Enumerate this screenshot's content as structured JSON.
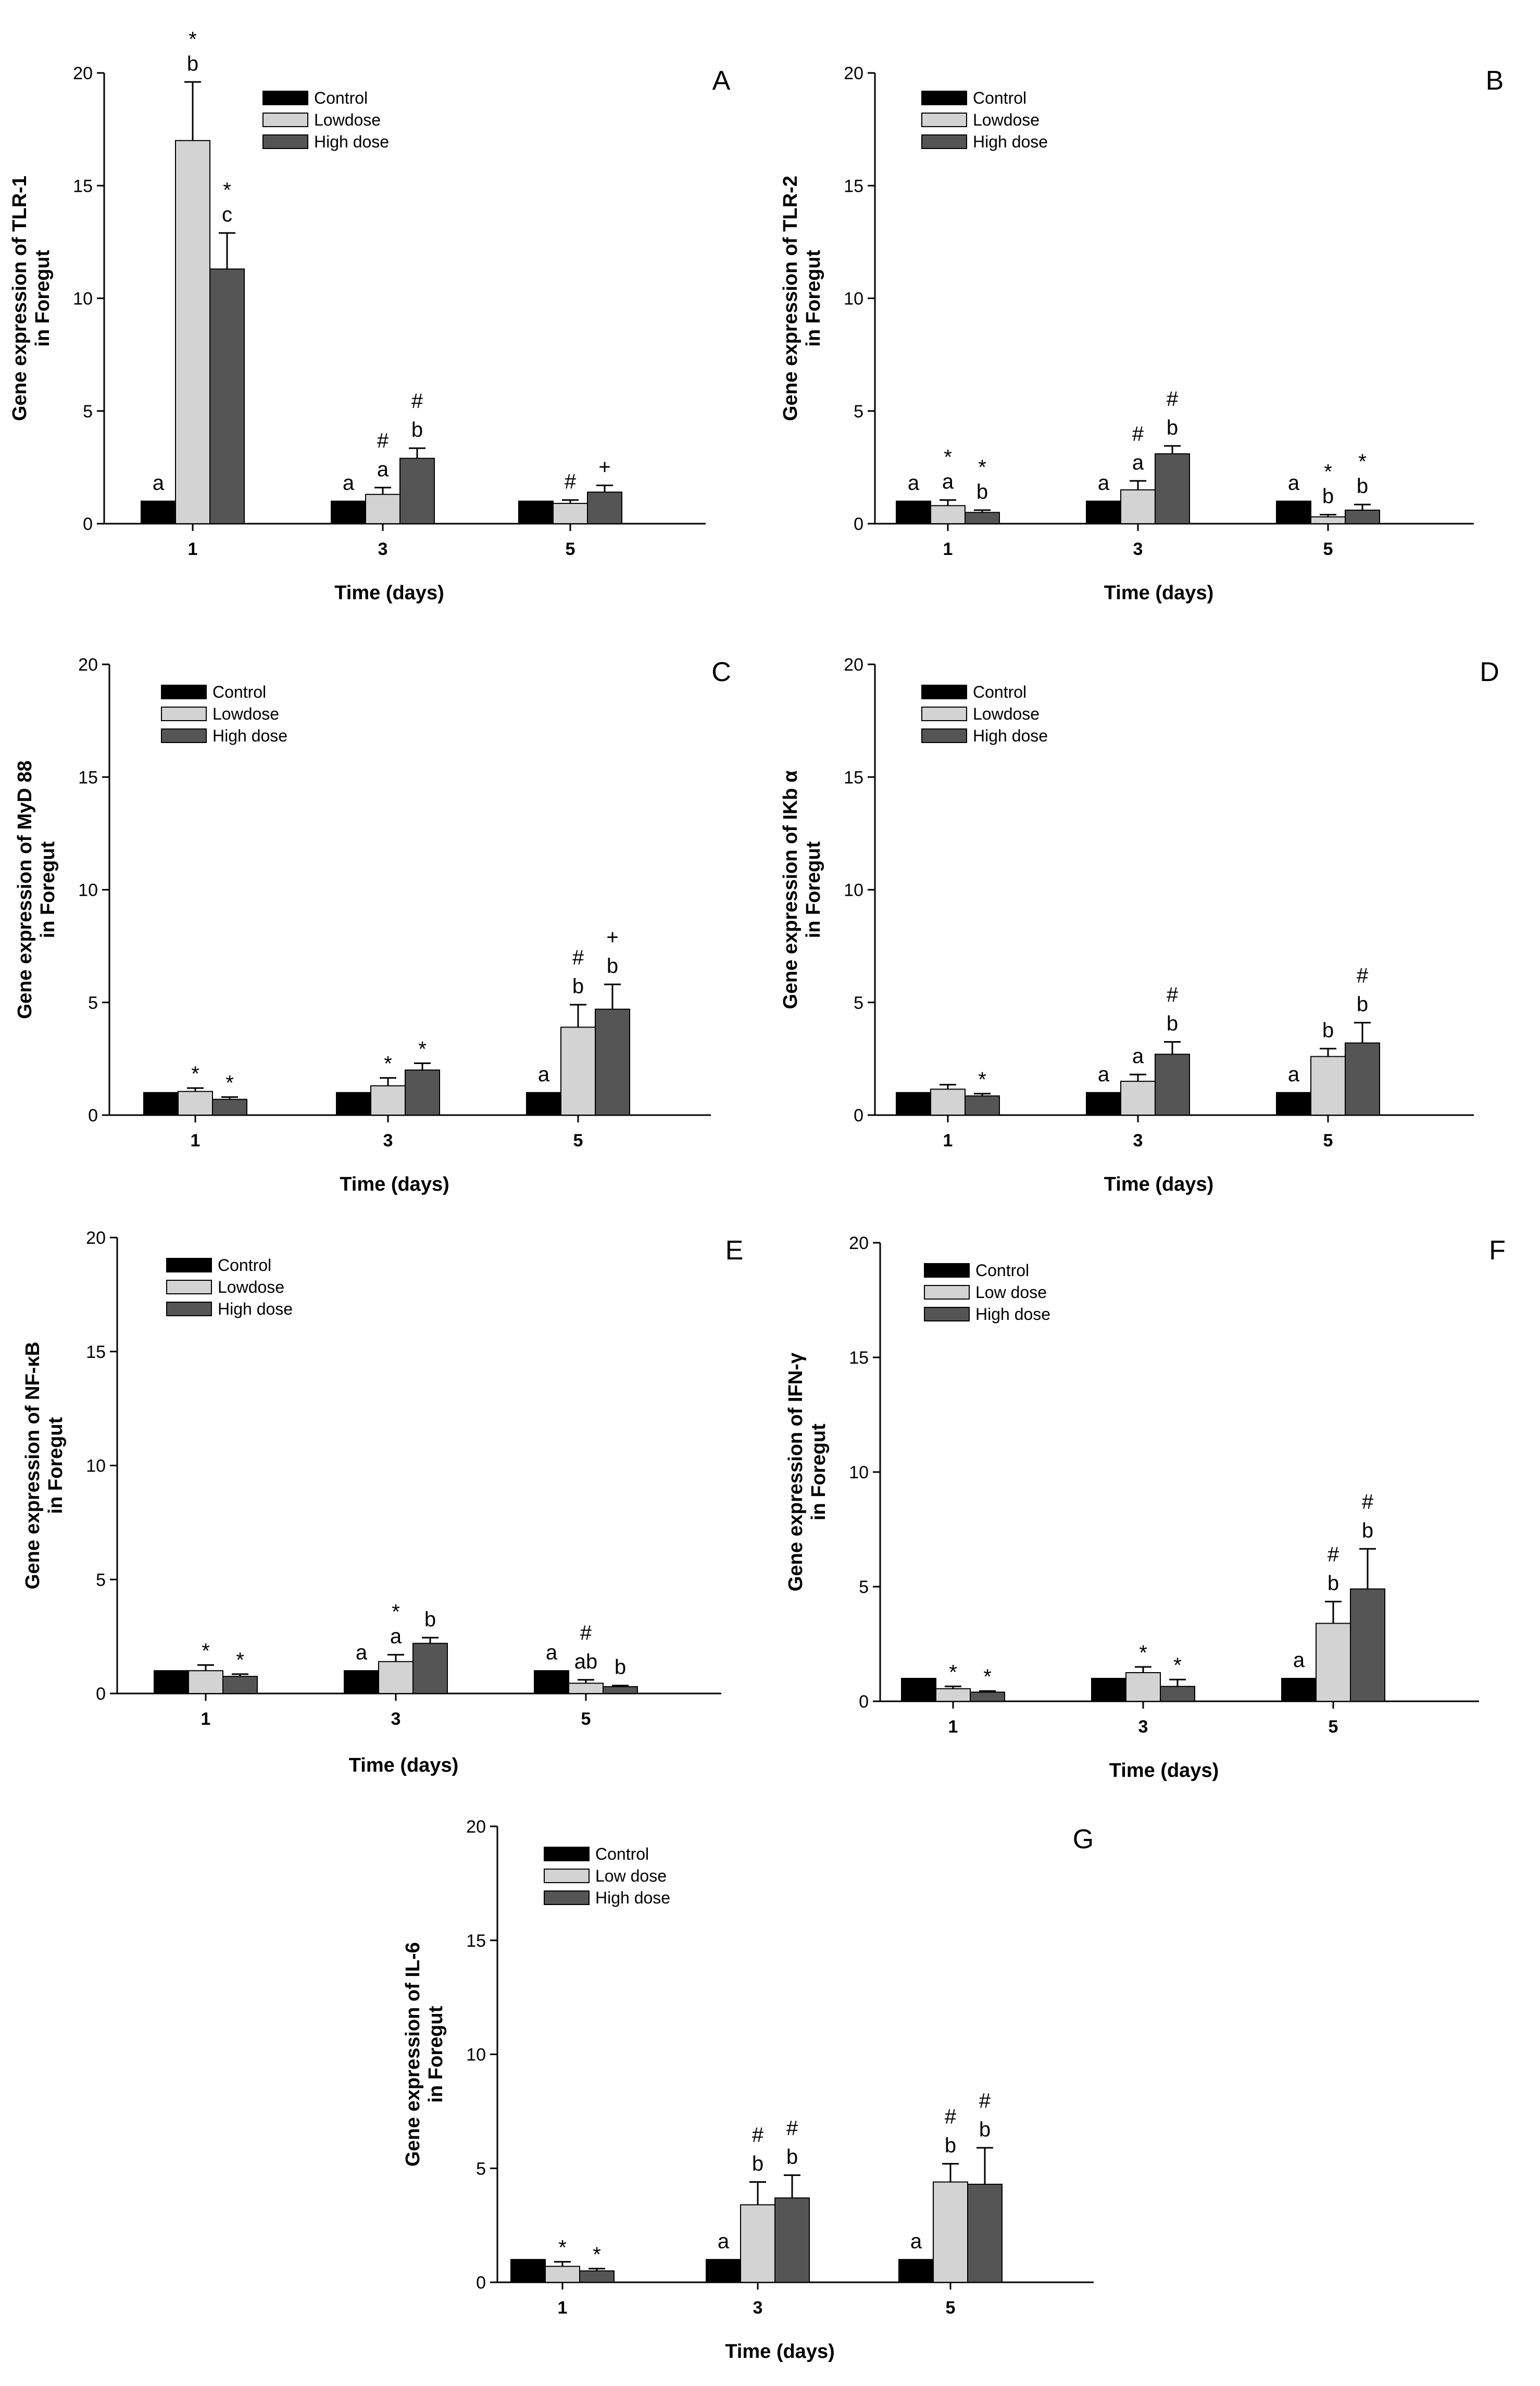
{
  "figure": {
    "legend_labels_default": [
      "Control",
      "Lowdose",
      "High dose"
    ],
    "colors": {
      "control": "#000000",
      "low": "#d3d3d3",
      "high": "#555555"
    }
  },
  "chart_data": [
    {
      "id": "A",
      "type": "bar",
      "panel": "A",
      "ylabel_lines": [
        "Gene expression of TLR-1",
        "in Foregut"
      ],
      "xlabel": "Time (days)",
      "categories": [
        "1",
        "3",
        "5"
      ],
      "ylim": [
        0,
        20
      ],
      "yticks": [
        0,
        5,
        10,
        15,
        20
      ],
      "legend": [
        "Control",
        "Lowdose",
        "High dose"
      ],
      "series": [
        {
          "name": "Control",
          "values": [
            1,
            1,
            1
          ],
          "errors": [
            0,
            0,
            0
          ]
        },
        {
          "name": "Lowdose",
          "values": [
            17,
            1.3,
            0.9
          ],
          "errors": [
            2.6,
            0.3,
            0.15
          ]
        },
        {
          "name": "High dose",
          "values": [
            11.3,
            2.9,
            1.4
          ],
          "errors": [
            1.6,
            0.45,
            0.3
          ]
        }
      ],
      "annotations": [
        {
          "group": 0,
          "series": 0,
          "labels": [
            "a"
          ]
        },
        {
          "group": 0,
          "series": 1,
          "labels": [
            "*",
            "b"
          ]
        },
        {
          "group": 0,
          "series": 2,
          "labels": [
            "*",
            "c"
          ]
        },
        {
          "group": 1,
          "series": 0,
          "labels": [
            "a"
          ]
        },
        {
          "group": 1,
          "series": 1,
          "labels": [
            "#",
            "a"
          ]
        },
        {
          "group": 1,
          "series": 2,
          "labels": [
            "#",
            "b"
          ]
        },
        {
          "group": 2,
          "series": 1,
          "labels": [
            "#"
          ]
        },
        {
          "group": 2,
          "series": 2,
          "labels": [
            "+"
          ]
        }
      ]
    },
    {
      "id": "B",
      "type": "bar",
      "panel": "B",
      "ylabel_lines": [
        "Gene expression of TLR-2",
        "in Foregut"
      ],
      "xlabel": "Time (days)",
      "categories": [
        "1",
        "3",
        "5"
      ],
      "ylim": [
        0,
        20
      ],
      "yticks": [
        0,
        5,
        10,
        15,
        20
      ],
      "legend": [
        "Control",
        "Lowdose",
        "High dose"
      ],
      "series": [
        {
          "name": "Control",
          "values": [
            1,
            1,
            1
          ],
          "errors": [
            0,
            0,
            0
          ]
        },
        {
          "name": "Lowdose",
          "values": [
            0.8,
            1.5,
            0.3
          ],
          "errors": [
            0.25,
            0.4,
            0.1
          ]
        },
        {
          "name": "High dose",
          "values": [
            0.5,
            3.1,
            0.6
          ],
          "errors": [
            0.1,
            0.35,
            0.25
          ]
        }
      ],
      "annotations": [
        {
          "group": 0,
          "series": 0,
          "labels": [
            "a"
          ]
        },
        {
          "group": 0,
          "series": 1,
          "labels": [
            "*",
            "a"
          ]
        },
        {
          "group": 0,
          "series": 2,
          "labels": [
            "*",
            "b"
          ]
        },
        {
          "group": 1,
          "series": 0,
          "labels": [
            "a"
          ]
        },
        {
          "group": 1,
          "series": 1,
          "labels": [
            "#",
            "a"
          ]
        },
        {
          "group": 1,
          "series": 2,
          "labels": [
            "#",
            "b"
          ]
        },
        {
          "group": 2,
          "series": 0,
          "labels": [
            "a"
          ]
        },
        {
          "group": 2,
          "series": 1,
          "labels": [
            "*",
            "b"
          ]
        },
        {
          "group": 2,
          "series": 2,
          "labels": [
            "*",
            "b"
          ]
        }
      ]
    },
    {
      "id": "C",
      "type": "bar",
      "panel": "C",
      "ylabel_lines": [
        "Gene expression of MyD 88",
        "in Foregut"
      ],
      "xlabel": "Time (days)",
      "categories": [
        "1",
        "3",
        "5"
      ],
      "ylim": [
        0,
        20
      ],
      "yticks": [
        0,
        5,
        10,
        15,
        20
      ],
      "legend": [
        "Control",
        "Lowdose",
        "High dose"
      ],
      "series": [
        {
          "name": "Control",
          "values": [
            1,
            1,
            1
          ],
          "errors": [
            0,
            0,
            0
          ]
        },
        {
          "name": "Lowdose",
          "values": [
            1.05,
            1.3,
            3.9
          ],
          "errors": [
            0.15,
            0.35,
            1.0
          ]
        },
        {
          "name": "High dose",
          "values": [
            0.7,
            2.0,
            4.7
          ],
          "errors": [
            0.1,
            0.3,
            1.1
          ]
        }
      ],
      "annotations": [
        {
          "group": 0,
          "series": 1,
          "labels": [
            "*"
          ]
        },
        {
          "group": 0,
          "series": 2,
          "labels": [
            "*"
          ]
        },
        {
          "group": 1,
          "series": 1,
          "labels": [
            "*"
          ]
        },
        {
          "group": 1,
          "series": 2,
          "labels": [
            "*"
          ]
        },
        {
          "group": 2,
          "series": 0,
          "labels": [
            "a"
          ]
        },
        {
          "group": 2,
          "series": 1,
          "labels": [
            "#",
            "b"
          ]
        },
        {
          "group": 2,
          "series": 2,
          "labels": [
            "+",
            "b"
          ]
        }
      ]
    },
    {
      "id": "D",
      "type": "bar",
      "panel": "D",
      "ylabel_lines": [
        "Gene expression of IKb α",
        "in Foregut"
      ],
      "xlabel": "Time (days)",
      "categories": [
        "1",
        "3",
        "5"
      ],
      "ylim": [
        0,
        20
      ],
      "yticks": [
        0,
        5,
        10,
        15,
        20
      ],
      "legend": [
        "Control",
        "Lowdose",
        "High dose"
      ],
      "series": [
        {
          "name": "Control",
          "values": [
            1,
            1,
            1
          ],
          "errors": [
            0,
            0,
            0
          ]
        },
        {
          "name": "Lowdose",
          "values": [
            1.15,
            1.5,
            2.6
          ],
          "errors": [
            0.2,
            0.3,
            0.35
          ]
        },
        {
          "name": "High dose",
          "values": [
            0.85,
            2.7,
            3.2
          ],
          "errors": [
            0.1,
            0.55,
            0.9
          ]
        }
      ],
      "annotations": [
        {
          "group": 0,
          "series": 2,
          "labels": [
            "*"
          ]
        },
        {
          "group": 1,
          "series": 0,
          "labels": [
            "a"
          ]
        },
        {
          "group": 1,
          "series": 1,
          "labels": [
            "a"
          ]
        },
        {
          "group": 1,
          "series": 2,
          "labels": [
            "#",
            "b"
          ]
        },
        {
          "group": 2,
          "series": 0,
          "labels": [
            "a"
          ]
        },
        {
          "group": 2,
          "series": 1,
          "labels": [
            "b"
          ]
        },
        {
          "group": 2,
          "series": 2,
          "labels": [
            "#",
            "b"
          ]
        }
      ]
    },
    {
      "id": "E",
      "type": "bar",
      "panel": "E",
      "ylabel_lines": [
        "Gene expression of NF-κB",
        "in Foregut"
      ],
      "xlabel": "Time (days)",
      "categories": [
        "1",
        "3",
        "5"
      ],
      "ylim": [
        0,
        20
      ],
      "yticks": [
        0,
        5,
        10,
        15,
        20
      ],
      "legend": [
        "Control",
        "Lowdose",
        "High dose"
      ],
      "series": [
        {
          "name": "Control",
          "values": [
            1,
            1,
            1
          ],
          "errors": [
            0,
            0,
            0
          ]
        },
        {
          "name": "Lowdose",
          "values": [
            1.0,
            1.4,
            0.45
          ],
          "errors": [
            0.25,
            0.3,
            0.15
          ]
        },
        {
          "name": "High dose",
          "values": [
            0.75,
            2.2,
            0.3
          ],
          "errors": [
            0.1,
            0.25,
            0.05
          ]
        }
      ],
      "annotations": [
        {
          "group": 0,
          "series": 1,
          "labels": [
            "*"
          ]
        },
        {
          "group": 0,
          "series": 2,
          "labels": [
            "*"
          ]
        },
        {
          "group": 1,
          "series": 0,
          "labels": [
            "a"
          ]
        },
        {
          "group": 1,
          "series": 1,
          "labels": [
            "*",
            "a"
          ]
        },
        {
          "group": 1,
          "series": 2,
          "labels": [
            "b"
          ]
        },
        {
          "group": 2,
          "series": 0,
          "labels": [
            "a"
          ]
        },
        {
          "group": 2,
          "series": 1,
          "labels": [
            "#",
            "ab"
          ]
        },
        {
          "group": 2,
          "series": 2,
          "labels": [
            "b"
          ]
        }
      ]
    },
    {
      "id": "F",
      "type": "bar",
      "panel": "F",
      "ylabel_lines": [
        "Gene expression of IFN-γ",
        "in Foregut"
      ],
      "xlabel": "Time (days)",
      "categories": [
        "1",
        "3",
        "5"
      ],
      "ylim": [
        0,
        20
      ],
      "yticks": [
        0,
        5,
        10,
        15,
        20
      ],
      "legend": [
        "Control",
        "Low dose",
        "High dose"
      ],
      "series": [
        {
          "name": "Control",
          "values": [
            1,
            1,
            1
          ],
          "errors": [
            0,
            0,
            0
          ]
        },
        {
          "name": "Low dose",
          "values": [
            0.55,
            1.25,
            3.4
          ],
          "errors": [
            0.1,
            0.25,
            0.95
          ]
        },
        {
          "name": "High dose",
          "values": [
            0.4,
            0.65,
            4.9
          ],
          "errors": [
            0.05,
            0.3,
            1.75
          ]
        }
      ],
      "annotations": [
        {
          "group": 0,
          "series": 1,
          "labels": [
            "*"
          ]
        },
        {
          "group": 0,
          "series": 2,
          "labels": [
            "*"
          ]
        },
        {
          "group": 1,
          "series": 1,
          "labels": [
            "*"
          ]
        },
        {
          "group": 1,
          "series": 2,
          "labels": [
            "*"
          ]
        },
        {
          "group": 2,
          "series": 0,
          "labels": [
            "a"
          ]
        },
        {
          "group": 2,
          "series": 1,
          "labels": [
            "#",
            "b"
          ]
        },
        {
          "group": 2,
          "series": 2,
          "labels": [
            "#",
            "b"
          ]
        }
      ]
    },
    {
      "id": "G",
      "type": "bar",
      "panel": "G",
      "ylabel_lines": [
        "Gene expression of IL-6",
        "in Foregut"
      ],
      "xlabel": "Time (days)",
      "categories": [
        "1",
        "3",
        "5"
      ],
      "ylim": [
        0,
        20
      ],
      "yticks": [
        0,
        5,
        10,
        15,
        20
      ],
      "legend": [
        "Control",
        "Low dose",
        "High dose"
      ],
      "series": [
        {
          "name": "Control",
          "values": [
            1,
            1,
            1
          ],
          "errors": [
            0,
            0,
            0
          ]
        },
        {
          "name": "Low dose",
          "values": [
            0.7,
            3.4,
            4.4
          ],
          "errors": [
            0.2,
            1.0,
            0.8
          ]
        },
        {
          "name": "High dose",
          "values": [
            0.5,
            3.7,
            4.3
          ],
          "errors": [
            0.1,
            1.0,
            1.6
          ]
        }
      ],
      "annotations": [
        {
          "group": 0,
          "series": 1,
          "labels": [
            "*"
          ]
        },
        {
          "group": 0,
          "series": 2,
          "labels": [
            "*"
          ]
        },
        {
          "group": 1,
          "series": 0,
          "labels": [
            "a"
          ]
        },
        {
          "group": 1,
          "series": 1,
          "labels": [
            "#",
            "b"
          ]
        },
        {
          "group": 1,
          "series": 2,
          "labels": [
            "#",
            "b"
          ]
        },
        {
          "group": 2,
          "series": 0,
          "labels": [
            "a"
          ]
        },
        {
          "group": 2,
          "series": 1,
          "labels": [
            "#",
            "b"
          ]
        },
        {
          "group": 2,
          "series": 2,
          "labels": [
            "#",
            "b"
          ]
        }
      ]
    }
  ]
}
